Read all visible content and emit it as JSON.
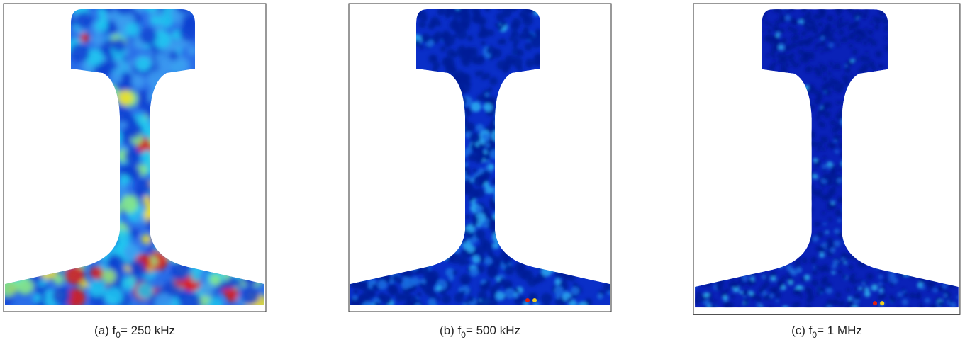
{
  "panels": [
    {
      "caption": {
        "prefix": "(a) f",
        "subscript": "0",
        "suffix": "= 250 kHz"
      }
    },
    {
      "caption": {
        "prefix": "(b) f",
        "subscript": "0",
        "suffix": "= 500 kHz"
      }
    },
    {
      "caption": {
        "prefix": "(c) f",
        "subscript": "0",
        "suffix": "= 1 MHz"
      }
    }
  ]
}
